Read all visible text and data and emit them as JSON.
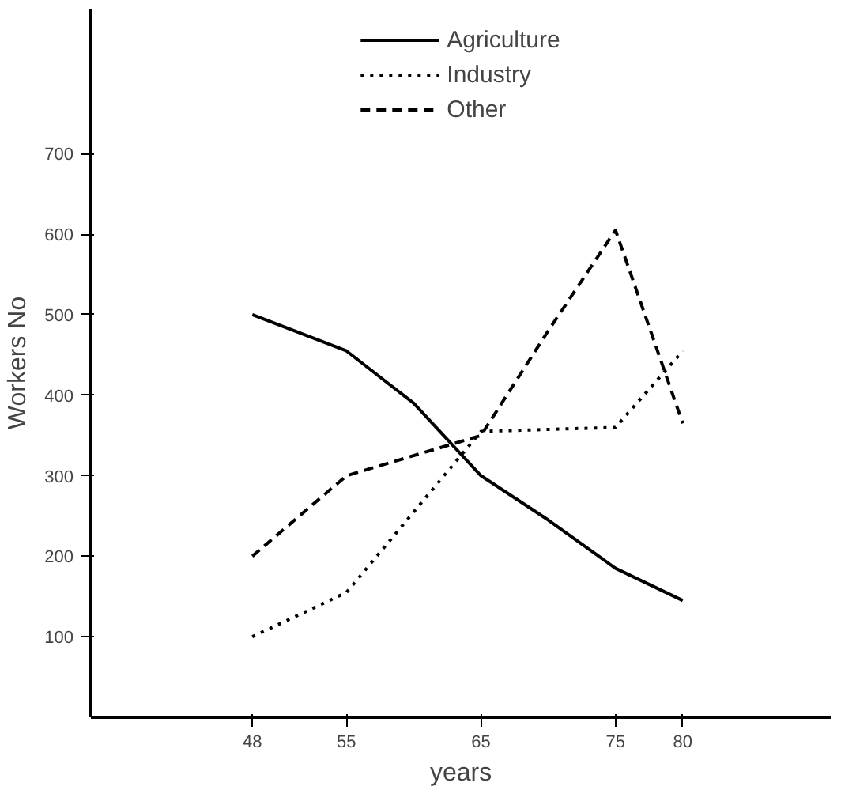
{
  "chart_data": {
    "type": "line",
    "xlabel": "years",
    "ylabel": "Workers No",
    "xlim": [
      36,
      91
    ],
    "xticks": [
      48,
      55,
      65,
      75,
      80
    ],
    "ylim": [
      0,
      880
    ],
    "yticks": [
      100,
      200,
      300,
      400,
      500,
      600,
      700
    ],
    "grid": false,
    "legend": "top",
    "marker": "none",
    "series": [
      {
        "name": "Agriculture",
        "color": "#000000",
        "line_style": "solid",
        "x": [
          48,
          55,
          60,
          65,
          70,
          75,
          80
        ],
        "values": [
          500,
          455,
          390,
          300,
          245,
          185,
          145
        ]
      },
      {
        "name": "Industry",
        "color": "#000000",
        "line_style": "dotted",
        "x": [
          48,
          55,
          65,
          75,
          80
        ],
        "values": [
          100,
          155,
          355,
          360,
          455
        ]
      },
      {
        "name": "Other",
        "color": "#000000",
        "line_style": "dashed",
        "x": [
          48,
          55,
          65,
          70,
          75,
          80
        ],
        "values": [
          200,
          300,
          350,
          480,
          605,
          365
        ]
      }
    ]
  }
}
